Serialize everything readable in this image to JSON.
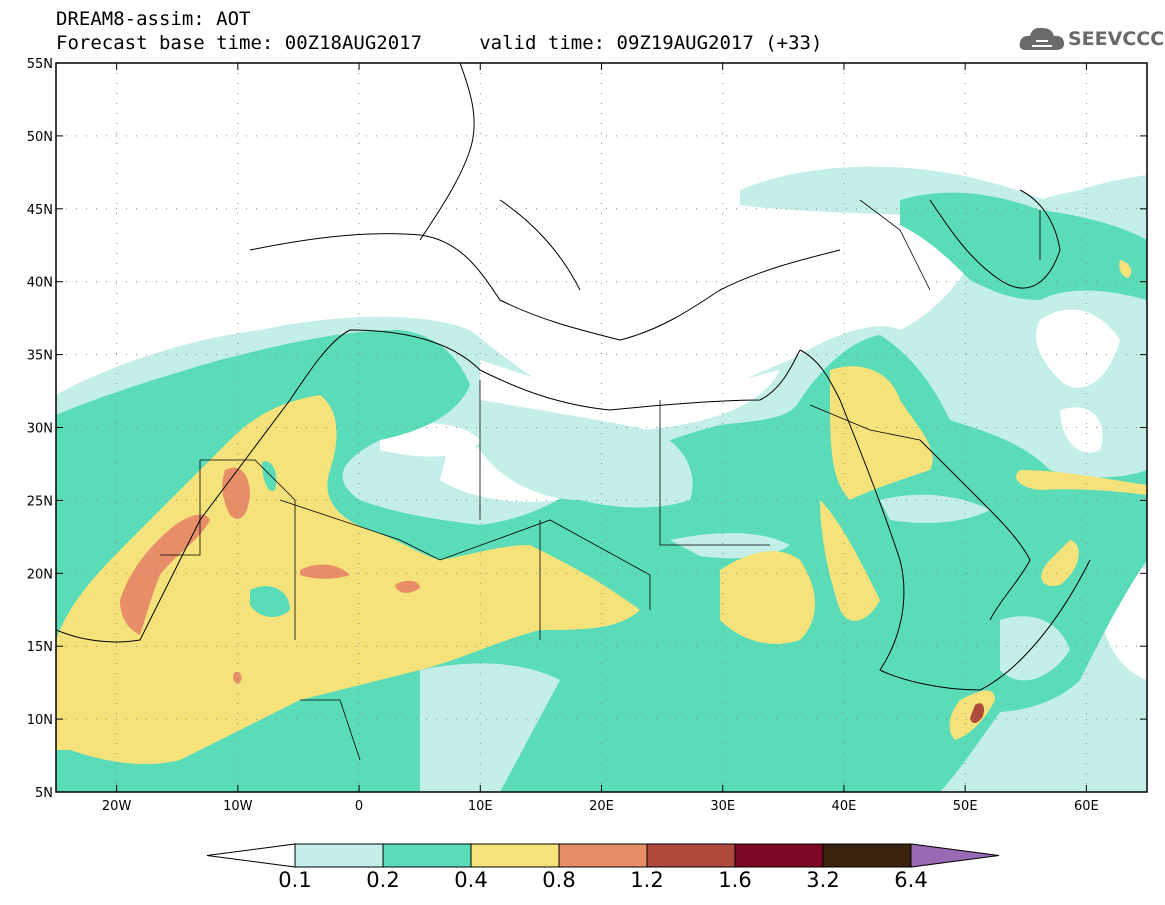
{
  "header": {
    "line1": "DREAM8-assim: AOT",
    "line2": "Forecast base time: 00Z18AUG2017     valid time: 09Z19AUG2017 (+33)"
  },
  "logo": {
    "text": "SEEVCCC",
    "icon": "cloud-icon",
    "color": "#6a6a6a"
  },
  "map": {
    "lon_range": [
      -25,
      65
    ],
    "lat_range": [
      5,
      55
    ],
    "lat_labels": [
      "55N",
      "50N",
      "45N",
      "40N",
      "35N",
      "30N",
      "25N",
      "20N",
      "15N",
      "10N",
      "5N"
    ],
    "lon_labels": [
      "20W",
      "10W",
      "0",
      "10E",
      "20E",
      "30E",
      "40E",
      "50E",
      "60E"
    ]
  },
  "colorbar": {
    "levels": [
      "0.1",
      "0.2",
      "0.4",
      "0.8",
      "1.2",
      "1.6",
      "3.2",
      "6.4"
    ],
    "colors": [
      "#ffffff",
      "#c4efe8",
      "#5bdcb8",
      "#f5e27a",
      "#e78e68",
      "#b04a3c",
      "#7d0826",
      "#3a2410",
      "#9a6bb5"
    ]
  }
}
